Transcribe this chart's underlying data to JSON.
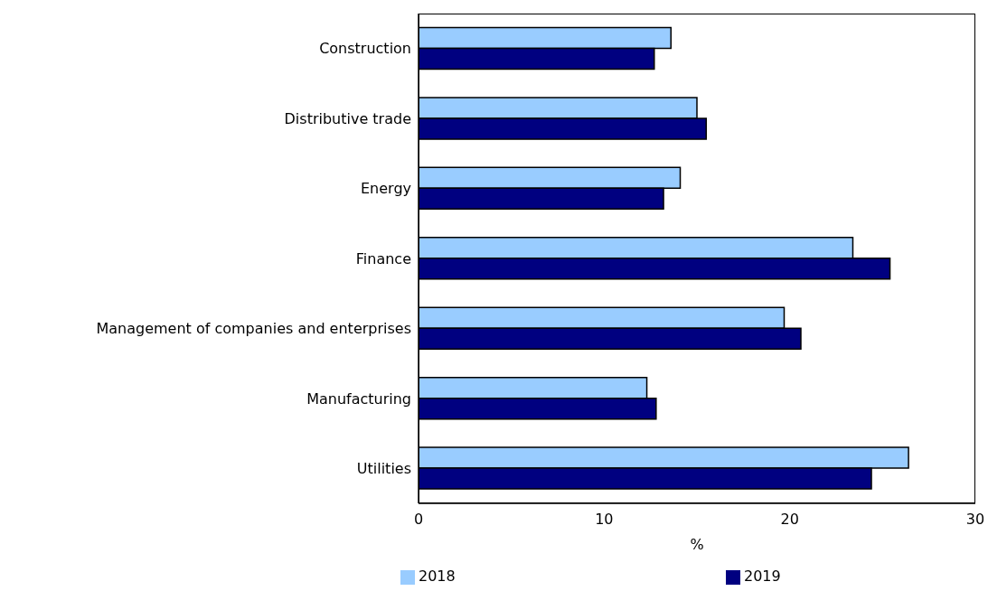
{
  "chart_data": {
    "type": "bar",
    "orientation": "horizontal",
    "xlabel": "%",
    "categories": [
      "Construction",
      "Distributive trade",
      "Energy",
      "Finance",
      "Management of companies and enterprises",
      "Manufacturing",
      "Utilities"
    ],
    "series": [
      {
        "name": "2018",
        "color": "#99ccff",
        "values": [
          13.6,
          15.0,
          14.1,
          23.4,
          19.7,
          12.3,
          26.4
        ]
      },
      {
        "name": "2019",
        "color": "#000080",
        "values": [
          12.7,
          15.5,
          13.2,
          25.4,
          20.6,
          12.8,
          24.4
        ]
      }
    ],
    "xlim": [
      0,
      30
    ],
    "xticks": [
      0,
      10,
      20,
      30
    ],
    "grid": false,
    "legend": "bottom"
  }
}
